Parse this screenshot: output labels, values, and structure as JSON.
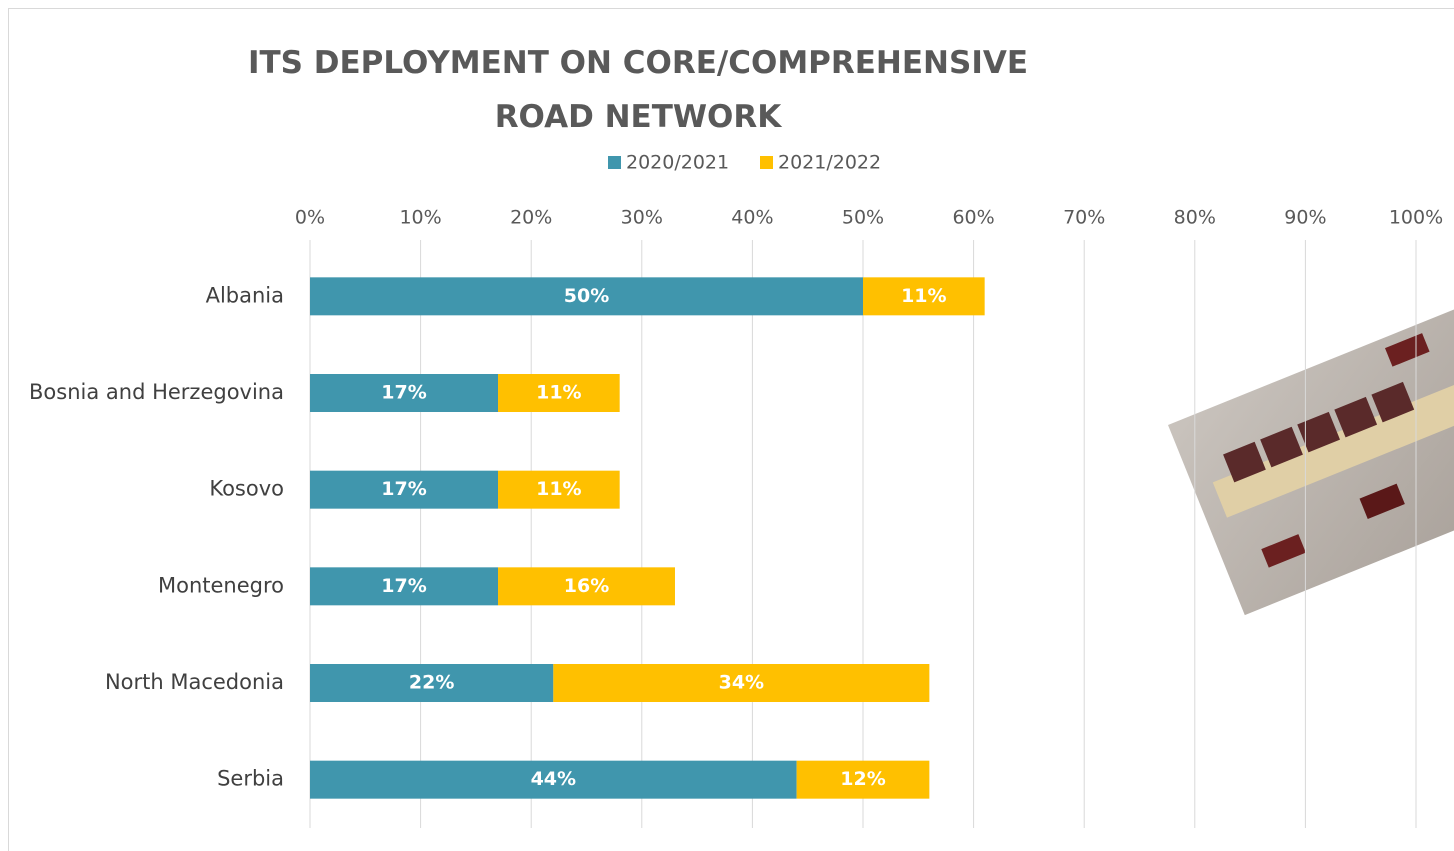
{
  "chart_data": {
    "type": "stacked-bar-horizontal",
    "title": "ITS DEPLOYMENT ON CORE/COMPREHENSIVE ROAD NETWORK",
    "categories": [
      "Albania",
      "Bosnia and Herzegovina",
      "Kosovo",
      "Montenegro",
      "North Macedonia",
      "Serbia"
    ],
    "series": [
      {
        "name": "2020/2021",
        "color": "#4096ad",
        "values": [
          50,
          17,
          17,
          17,
          22,
          44
        ],
        "value_labels": [
          "50%",
          "17%",
          "17%",
          "17%",
          "22%",
          "44%"
        ]
      },
      {
        "name": "2021/2022",
        "color": "#ffc000",
        "values": [
          11,
          11,
          11,
          16,
          34,
          12
        ],
        "value_labels": [
          "11%",
          "11%",
          "11%",
          "16%",
          "34%",
          "12%"
        ]
      }
    ],
    "xlim": [
      0,
      100
    ],
    "xticks": [
      {
        "value": 0,
        "label": "0%"
      },
      {
        "value": 10,
        "label": "10%"
      },
      {
        "value": 20,
        "label": "20%"
      },
      {
        "value": 30,
        "label": "30%"
      },
      {
        "value": 40,
        "label": "40%"
      },
      {
        "value": 50,
        "label": "50%"
      },
      {
        "value": 60,
        "label": "60%"
      },
      {
        "value": 70,
        "label": "70%"
      },
      {
        "value": 80,
        "label": "80%"
      },
      {
        "value": 90,
        "label": "90%"
      },
      {
        "value": 100,
        "label": "100%"
      }
    ],
    "grid": true,
    "legend": "top"
  }
}
